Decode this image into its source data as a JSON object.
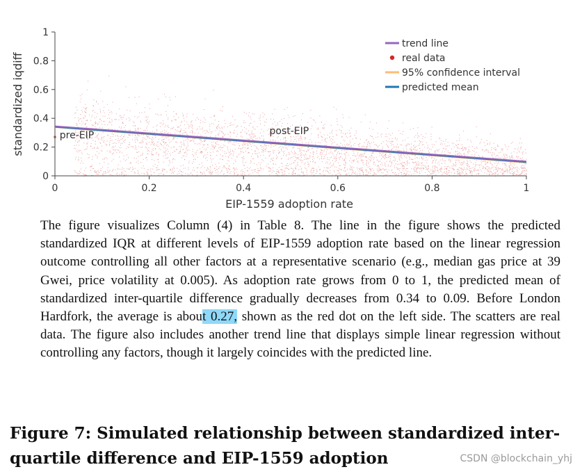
{
  "chart_data": {
    "type": "scatter",
    "xlabel": "EIP-1559 adoption rate",
    "ylabel": "standardized iqdiff",
    "xlim": [
      0,
      1
    ],
    "ylim": [
      0,
      1
    ],
    "x_ticks": [
      "0",
      "0.2",
      "0.4",
      "0.6",
      "0.8",
      "1"
    ],
    "y_ticks": [
      "0",
      "0.2",
      "0.4",
      "0.6",
      "0.8",
      "1"
    ],
    "x_tick_values": [
      0,
      0.2,
      0.4,
      0.6,
      0.8,
      1
    ],
    "y_tick_values": [
      0,
      0.2,
      0.4,
      0.6,
      0.8,
      1
    ],
    "legend": {
      "placement": "top-right",
      "entries": [
        {
          "label": "trend line",
          "kind": "line",
          "color": "#9467bd"
        },
        {
          "label": "real data",
          "kind": "dot",
          "color": "#d62728"
        },
        {
          "label": "95% confidence interval",
          "kind": "line",
          "color": "#ffbb78"
        },
        {
          "label": "predicted mean",
          "kind": "line",
          "color": "#1f77b4"
        }
      ]
    },
    "series": [
      {
        "name": "trend line",
        "x": [
          0,
          1
        ],
        "y": [
          0.345,
          0.1
        ],
        "color": "#9467bd"
      },
      {
        "name": "predicted mean",
        "x": [
          0,
          1
        ],
        "y": [
          0.34,
          0.095
        ],
        "color": "#1f77b4"
      },
      {
        "name": "95% confidence interval",
        "x": [
          0,
          1
        ],
        "y": [
          0.338,
          0.092
        ],
        "color": "#ffbb78"
      }
    ],
    "pre_eip": {
      "x": 0,
      "y": 0.27,
      "color": "#8c4a2f"
    },
    "annotations": [
      {
        "text": "pre-EIP",
        "x": 0.01,
        "y": 0.26
      },
      {
        "text": "post-EIP",
        "x": 0.455,
        "y": 0.29
      }
    ],
    "scatter_color": "#d62728"
  },
  "caption": {
    "before": "The figure visualizes Column (4) in Table 8. The line in the figure shows the predicted standardized IQR at different levels of EIP-1559 adoption rate based on the linear regression outcome controlling all other factors at a representative scenario (e.g., median gas price at 39 Gwei, price volatility at 0.005). As adoption rate grows from 0 to 1, the predicted mean of standardized inter-quartile difference gradually decreases from 0.34 to 0.09. Before London Hardfork, the average is abou",
    "highlight": "t 0.27,",
    "after": " shown as the red dot on the left side. The scatters are real data. The figure also includes another trend line that displays simple linear regression without controlling any factors, though it largely coincides with the predicted line."
  },
  "figure_title": "Figure 7: Simulated relationship between standardized inter-quartile difference and EIP-1559 adoption",
  "watermark": "CSDN @blockchain_yhj"
}
